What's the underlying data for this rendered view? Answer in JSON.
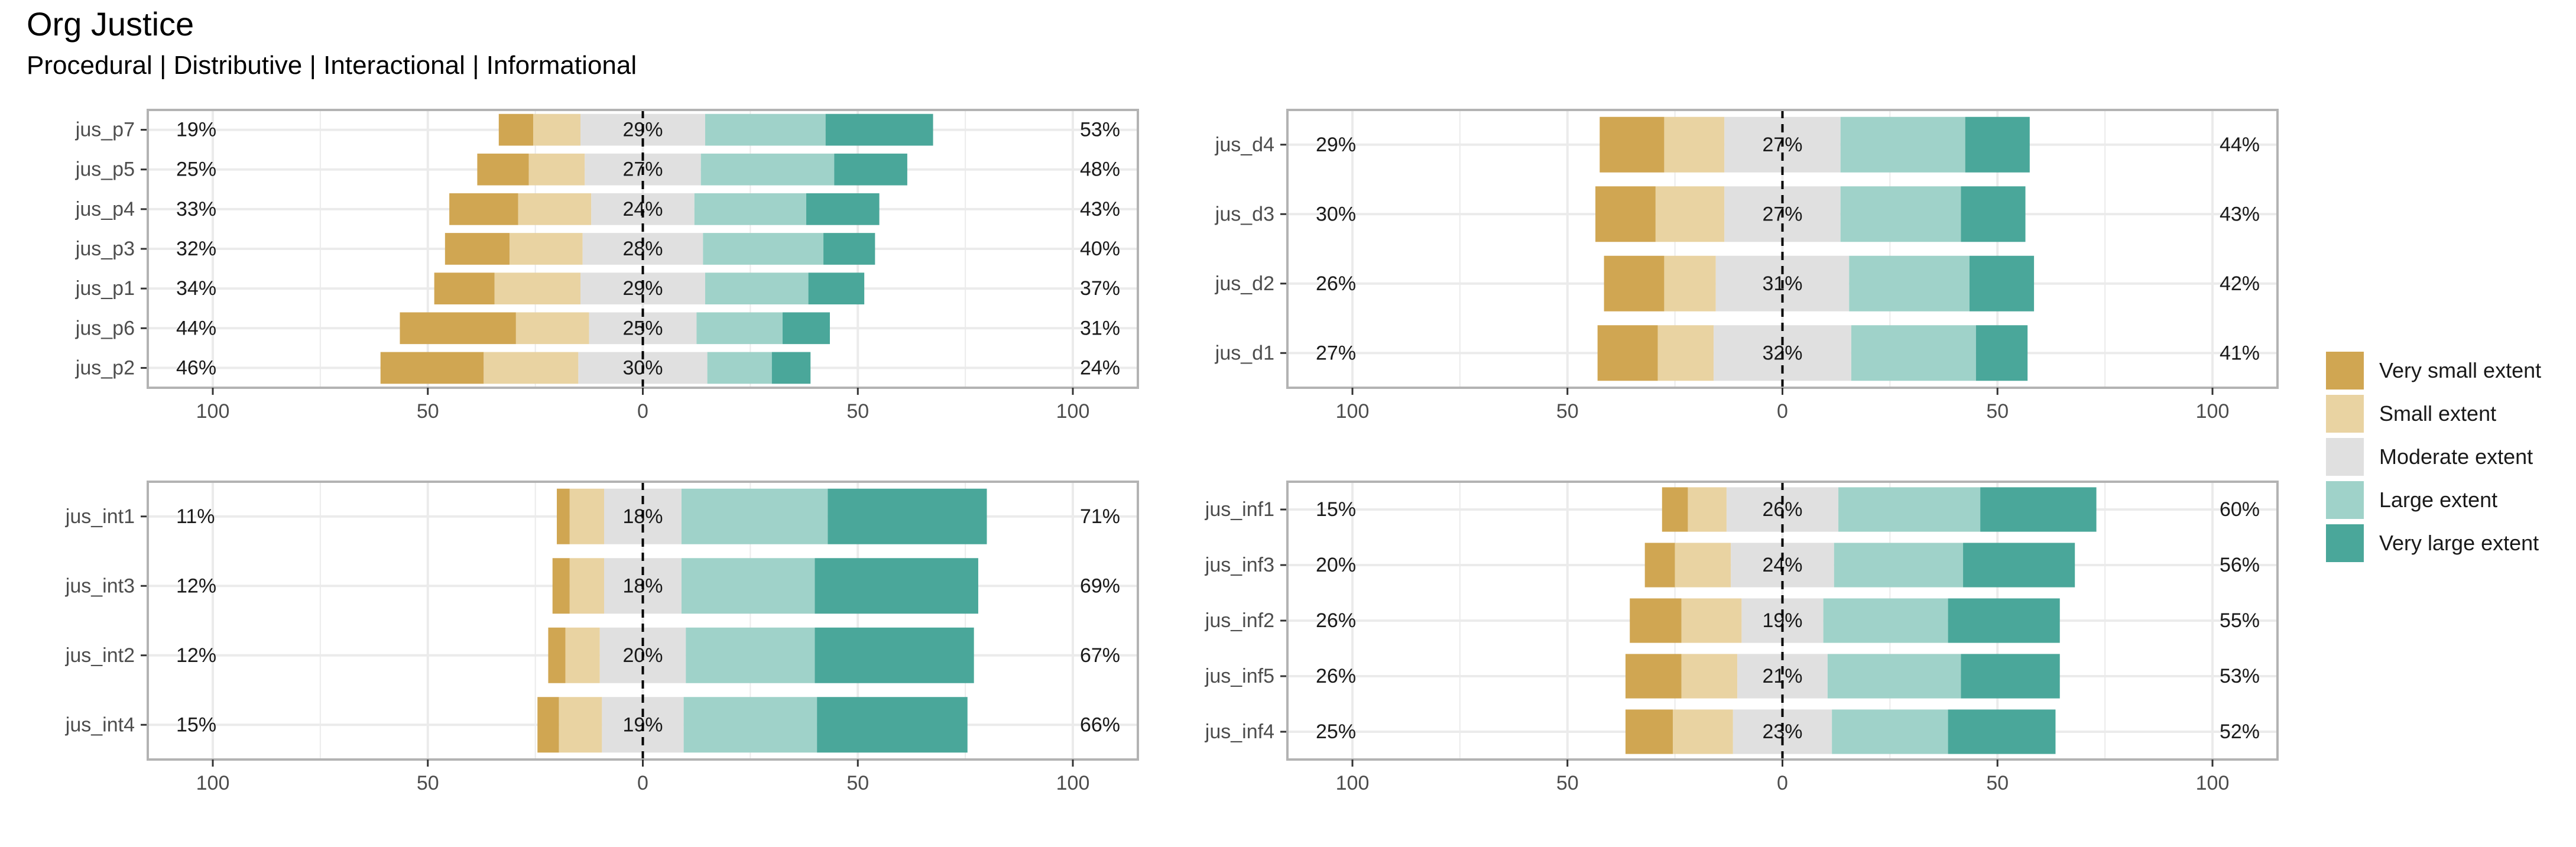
{
  "title": "Org Justice",
  "subtitle": "Procedural | Distributive | Interactional | Informational",
  "colors": {
    "very_small": "#D0A652",
    "small": "#E9D3A2",
    "moderate": "#E0E0E0",
    "large": "#9FD2C9",
    "very_large": "#4AA79A"
  },
  "legend": [
    {
      "label": "Very small extent",
      "color": "#D0A652"
    },
    {
      "label": "Small extent",
      "color": "#E9D3A2"
    },
    {
      "label": "Moderate extent",
      "color": "#E0E0E0"
    },
    {
      "label": "Large extent",
      "color": "#9FD2C9"
    },
    {
      "label": "Very large extent",
      "color": "#4AA79A"
    }
  ],
  "chart_data": [
    {
      "type": "bar",
      "subtype": "diverging-stacked",
      "categories": [
        "jus_p7",
        "jus_p5",
        "jus_p4",
        "jus_p3",
        "jus_p1",
        "jus_p6",
        "jus_p2"
      ],
      "series": [
        {
          "name": "Very small extent",
          "values": [
            8,
            12,
            16,
            15,
            14,
            27,
            24
          ]
        },
        {
          "name": "Small extent",
          "values": [
            11,
            13,
            17,
            17,
            20,
            17,
            22
          ]
        },
        {
          "name": "Moderate extent",
          "values": [
            29,
            27,
            24,
            28,
            29,
            25,
            30
          ]
        },
        {
          "name": "Large extent",
          "values": [
            28,
            31,
            26,
            28,
            24,
            20,
            15
          ]
        },
        {
          "name": "Very large extent",
          "values": [
            25,
            17,
            17,
            12,
            13,
            11,
            9
          ]
        }
      ],
      "left_labels": [
        "19%",
        "25%",
        "33%",
        "32%",
        "34%",
        "44%",
        "46%"
      ],
      "center_labels": [
        "29%",
        "27%",
        "24%",
        "28%",
        "29%",
        "25%",
        "30%"
      ],
      "right_labels": [
        "53%",
        "48%",
        "43%",
        "40%",
        "37%",
        "31%",
        "24%"
      ],
      "xlim": [
        -100,
        100
      ],
      "xticks": [
        "100",
        "50",
        "0",
        "50",
        "100"
      ]
    },
    {
      "type": "bar",
      "subtype": "diverging-stacked",
      "categories": [
        "jus_d4",
        "jus_d3",
        "jus_d2",
        "jus_d1"
      ],
      "series": [
        {
          "name": "Very small extent",
          "values": [
            15,
            14,
            14,
            14
          ]
        },
        {
          "name": "Small extent",
          "values": [
            14,
            16,
            12,
            13
          ]
        },
        {
          "name": "Moderate extent",
          "values": [
            27,
            27,
            31,
            32
          ]
        },
        {
          "name": "Large extent",
          "values": [
            29,
            28,
            28,
            29
          ]
        },
        {
          "name": "Very large extent",
          "values": [
            15,
            15,
            15,
            12
          ]
        }
      ],
      "left_labels": [
        "29%",
        "30%",
        "26%",
        "27%"
      ],
      "center_labels": [
        "27%",
        "27%",
        "31%",
        "32%"
      ],
      "right_labels": [
        "44%",
        "43%",
        "42%",
        "41%"
      ],
      "xlim": [
        -100,
        100
      ],
      "xticks": [
        "100",
        "50",
        "0",
        "50",
        "100"
      ]
    },
    {
      "type": "bar",
      "subtype": "diverging-stacked",
      "categories": [
        "jus_int1",
        "jus_int3",
        "jus_int2",
        "jus_int4"
      ],
      "series": [
        {
          "name": "Very small extent",
          "values": [
            3,
            4,
            4,
            5
          ]
        },
        {
          "name": "Small extent",
          "values": [
            8,
            8,
            8,
            10
          ]
        },
        {
          "name": "Moderate extent",
          "values": [
            18,
            18,
            20,
            19
          ]
        },
        {
          "name": "Large extent",
          "values": [
            34,
            31,
            30,
            31
          ]
        },
        {
          "name": "Very large extent",
          "values": [
            37,
            38,
            37,
            35
          ]
        }
      ],
      "left_labels": [
        "11%",
        "12%",
        "12%",
        "15%"
      ],
      "center_labels": [
        "18%",
        "18%",
        "20%",
        "19%"
      ],
      "right_labels": [
        "71%",
        "69%",
        "67%",
        "66%"
      ],
      "xlim": [
        -100,
        100
      ],
      "xticks": [
        "100",
        "50",
        "0",
        "50",
        "100"
      ]
    },
    {
      "type": "bar",
      "subtype": "diverging-stacked",
      "categories": [
        "jus_inf1",
        "jus_inf3",
        "jus_inf2",
        "jus_inf5",
        "jus_inf4"
      ],
      "series": [
        {
          "name": "Very small extent",
          "values": [
            6,
            7,
            12,
            13,
            11
          ]
        },
        {
          "name": "Small extent",
          "values": [
            9,
            13,
            14,
            13,
            14
          ]
        },
        {
          "name": "Moderate extent",
          "values": [
            26,
            24,
            19,
            21,
            23
          ]
        },
        {
          "name": "Large extent",
          "values": [
            33,
            30,
            29,
            31,
            27
          ]
        },
        {
          "name": "Very large extent",
          "values": [
            27,
            26,
            26,
            23,
            25
          ]
        }
      ],
      "left_labels": [
        "15%",
        "20%",
        "26%",
        "26%",
        "25%"
      ],
      "center_labels": [
        "26%",
        "24%",
        "19%",
        "21%",
        "23%"
      ],
      "right_labels": [
        "60%",
        "56%",
        "55%",
        "53%",
        "52%"
      ],
      "xlim": [
        -100,
        100
      ],
      "xticks": [
        "100",
        "50",
        "0",
        "50",
        "100"
      ]
    }
  ]
}
